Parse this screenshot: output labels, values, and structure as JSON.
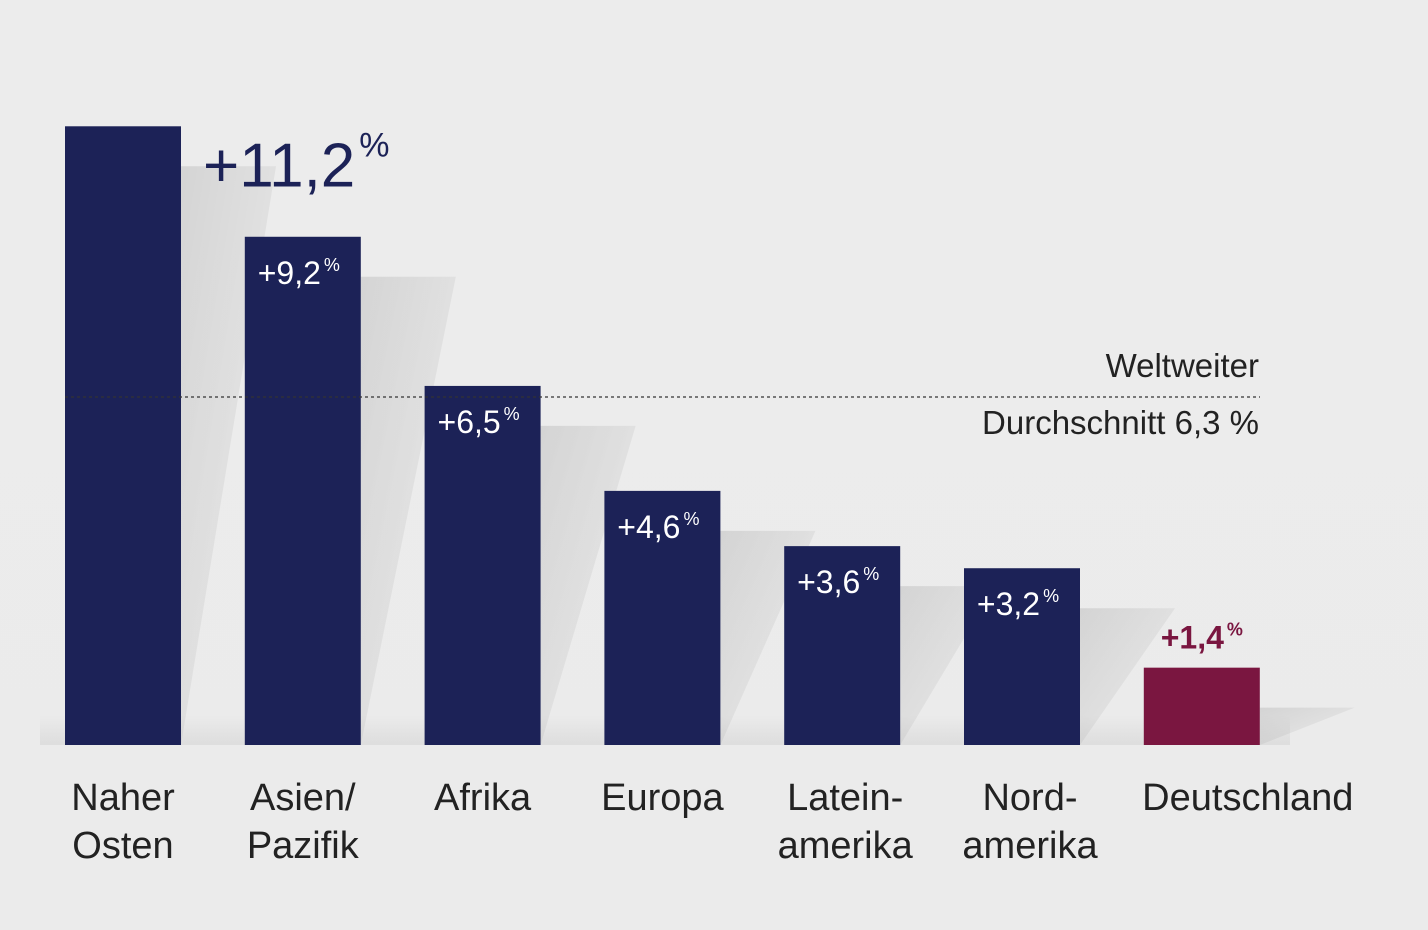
{
  "chart_data": {
    "type": "bar",
    "categories": [
      [
        "Naher",
        "Osten"
      ],
      [
        "Asien/",
        "Pazifik"
      ],
      [
        "Afrika"
      ],
      [
        "Europa"
      ],
      [
        "Latein-",
        "amerika"
      ],
      [
        "Nord-",
        "amerika"
      ],
      [
        "Deutschland"
      ]
    ],
    "values": [
      11.2,
      9.2,
      6.5,
      4.6,
      3.6,
      3.2,
      1.4
    ],
    "value_labels": [
      "+11,2",
      "+9,2",
      "+6,5",
      "+4,6",
      "+3,6",
      "+3,2",
      "+1,4"
    ],
    "unit": "%",
    "ylim": [
      0,
      12.4
    ],
    "colors": {
      "default": "#1c2257",
      "highlight": "#7a1640",
      "label_inside": "#ffffff",
      "background": "#ececec"
    },
    "highlight_index": 6,
    "reference_line": {
      "value": 6.3,
      "label_line1": "Weltweiter",
      "label_line2": "Durchschnitt 6,3 %"
    },
    "grid": false,
    "legend": "none"
  }
}
